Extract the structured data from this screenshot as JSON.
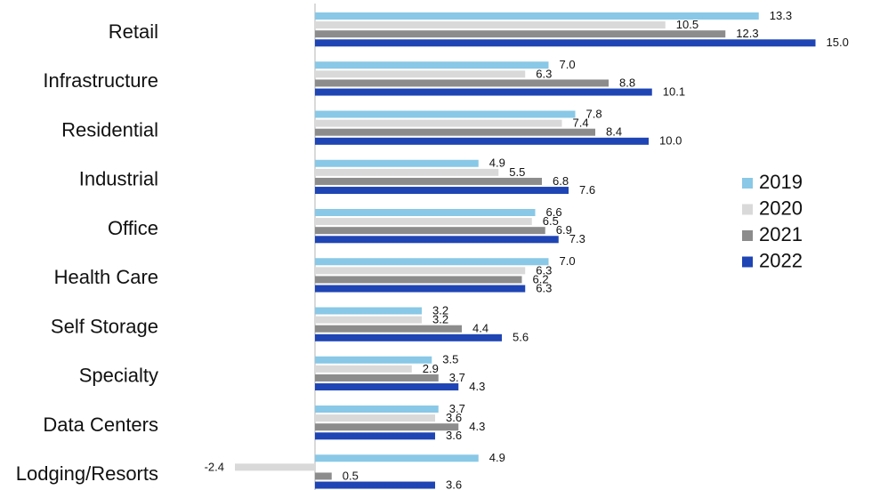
{
  "chart_data": {
    "type": "bar",
    "orientation": "horizontal",
    "categories": [
      "Retail",
      "Infrastructure",
      "Residential",
      "Industrial",
      "Office",
      "Health Care",
      "Self Storage",
      "Specialty",
      "Data Centers",
      "Lodging/Resorts"
    ],
    "series": [
      {
        "name": "2019",
        "color": "#89c8e6",
        "values": [
          13.3,
          7.0,
          7.8,
          4.9,
          6.6,
          7.0,
          3.2,
          3.5,
          3.7,
          4.9
        ]
      },
      {
        "name": "2020",
        "color": "#d9d9d9",
        "values": [
          10.5,
          6.3,
          7.4,
          5.5,
          6.5,
          6.3,
          3.2,
          2.9,
          3.6,
          -2.4
        ]
      },
      {
        "name": "2021",
        "color": "#8c8c8c",
        "values": [
          12.3,
          8.8,
          8.4,
          6.8,
          6.9,
          6.2,
          4.4,
          3.7,
          4.3,
          0.5
        ]
      },
      {
        "name": "2022",
        "color": "#1f45b4",
        "values": [
          15.0,
          10.1,
          10.0,
          7.6,
          7.3,
          6.3,
          5.6,
          4.3,
          3.6,
          3.6
        ]
      }
    ],
    "value_labels": [
      [
        "13.3",
        "10.5",
        "12.3",
        "15.0"
      ],
      [
        "7.0",
        "6.3",
        "8.8",
        "10.1"
      ],
      [
        "7.8",
        "7.4",
        "8.4",
        "10.0"
      ],
      [
        "4.9",
        "5.5",
        "6.8",
        "7.6"
      ],
      [
        "6.6",
        "6.5",
        "6.9",
        "7.3"
      ],
      [
        "7.0",
        "6.3",
        "6.2",
        "6.3"
      ],
      [
        "3.2",
        "3.2",
        "4.4",
        "5.6"
      ],
      [
        "3.5",
        "2.9",
        "3.7",
        "4.3"
      ],
      [
        "3.7",
        "3.6",
        "4.3",
        "3.6"
      ],
      [
        "4.9",
        "-2.4",
        "0.5",
        "3.6"
      ]
    ],
    "xlim": [
      -2.4,
      15.0
    ],
    "grid": false,
    "legend_position": "right"
  }
}
